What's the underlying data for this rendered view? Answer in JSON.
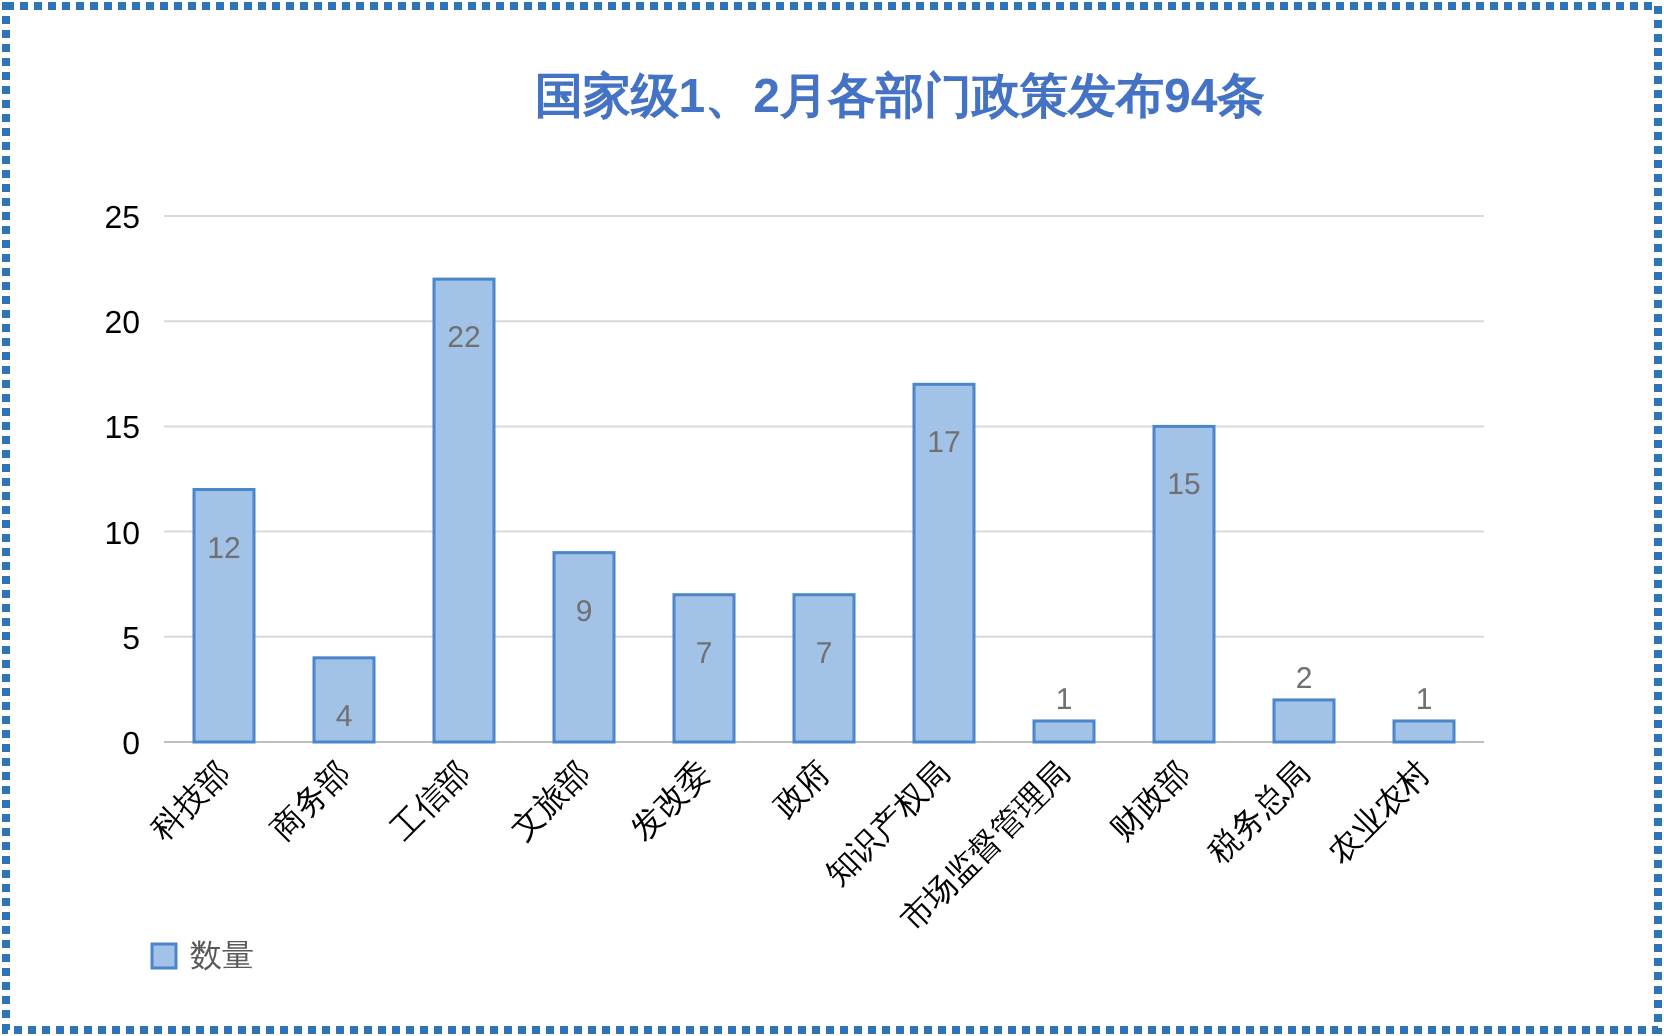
{
  "chart_data": {
    "type": "bar",
    "title": "国家级1、2月各部门政策发布94条",
    "categories": [
      "科技部",
      "商务部",
      "工信部",
      "文旅部",
      "发改委",
      "政府",
      "知识产权局",
      "市场监督管理局",
      "财政部",
      "税务总局",
      "农业农村"
    ],
    "series": [
      {
        "name": "数量",
        "color": "#a3c2e8",
        "values": [
          12,
          4,
          22,
          9,
          7,
          7,
          17,
          1,
          15,
          2,
          1
        ]
      }
    ],
    "ylim": [
      0,
      25
    ],
    "yticks": [
      0,
      5,
      10,
      15,
      20,
      25
    ],
    "grid": "y",
    "legend": "bottom left",
    "data_labels": true
  }
}
